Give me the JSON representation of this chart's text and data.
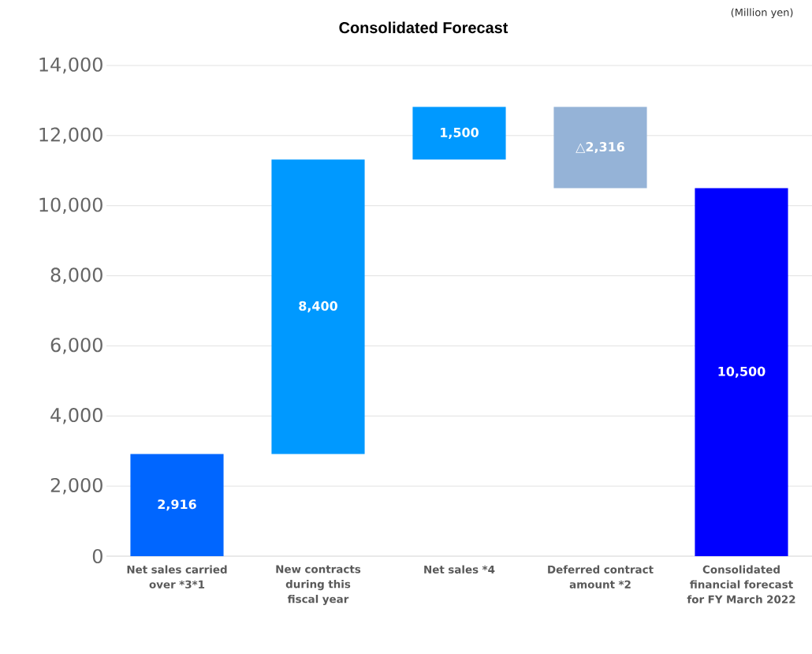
{
  "chart_data": {
    "type": "bar",
    "title": "Consolidated Forecast",
    "annotations": [
      "(Million yen)"
    ],
    "categories": [
      "Net sales carried over *3*1",
      "New contracts during this fiscal year",
      "Net sales *4",
      "Deferred contract amount *2",
      "Consolidated financial forecast for FY March 2022"
    ],
    "values": [
      2916,
      8400,
      1500,
      -2316,
      10500
    ],
    "base": [
      0,
      2916,
      11316,
      12816,
      0
    ],
    "value_labels": [
      "2,916",
      "8,400",
      "1,500",
      "△2,316",
      "10,500"
    ],
    "colors": [
      "#0066ff",
      "#0099ff",
      "#0099ff",
      "#95b3d7",
      "#0000ff"
    ],
    "ylim": [
      0,
      14000
    ],
    "yticks": [
      {
        "value": 0,
        "label": "0"
      },
      {
        "value": 2000,
        "label": "2,000"
      },
      {
        "value": 4000,
        "label": "4,000"
      },
      {
        "value": 6000,
        "label": "6,000"
      },
      {
        "value": 8000,
        "label": "8,000"
      },
      {
        "value": 10000,
        "label": "10,000"
      },
      {
        "value": 12000,
        "label": "12,000"
      },
      {
        "value": 14000,
        "label": "14,000"
      }
    ],
    "grid": "y"
  }
}
